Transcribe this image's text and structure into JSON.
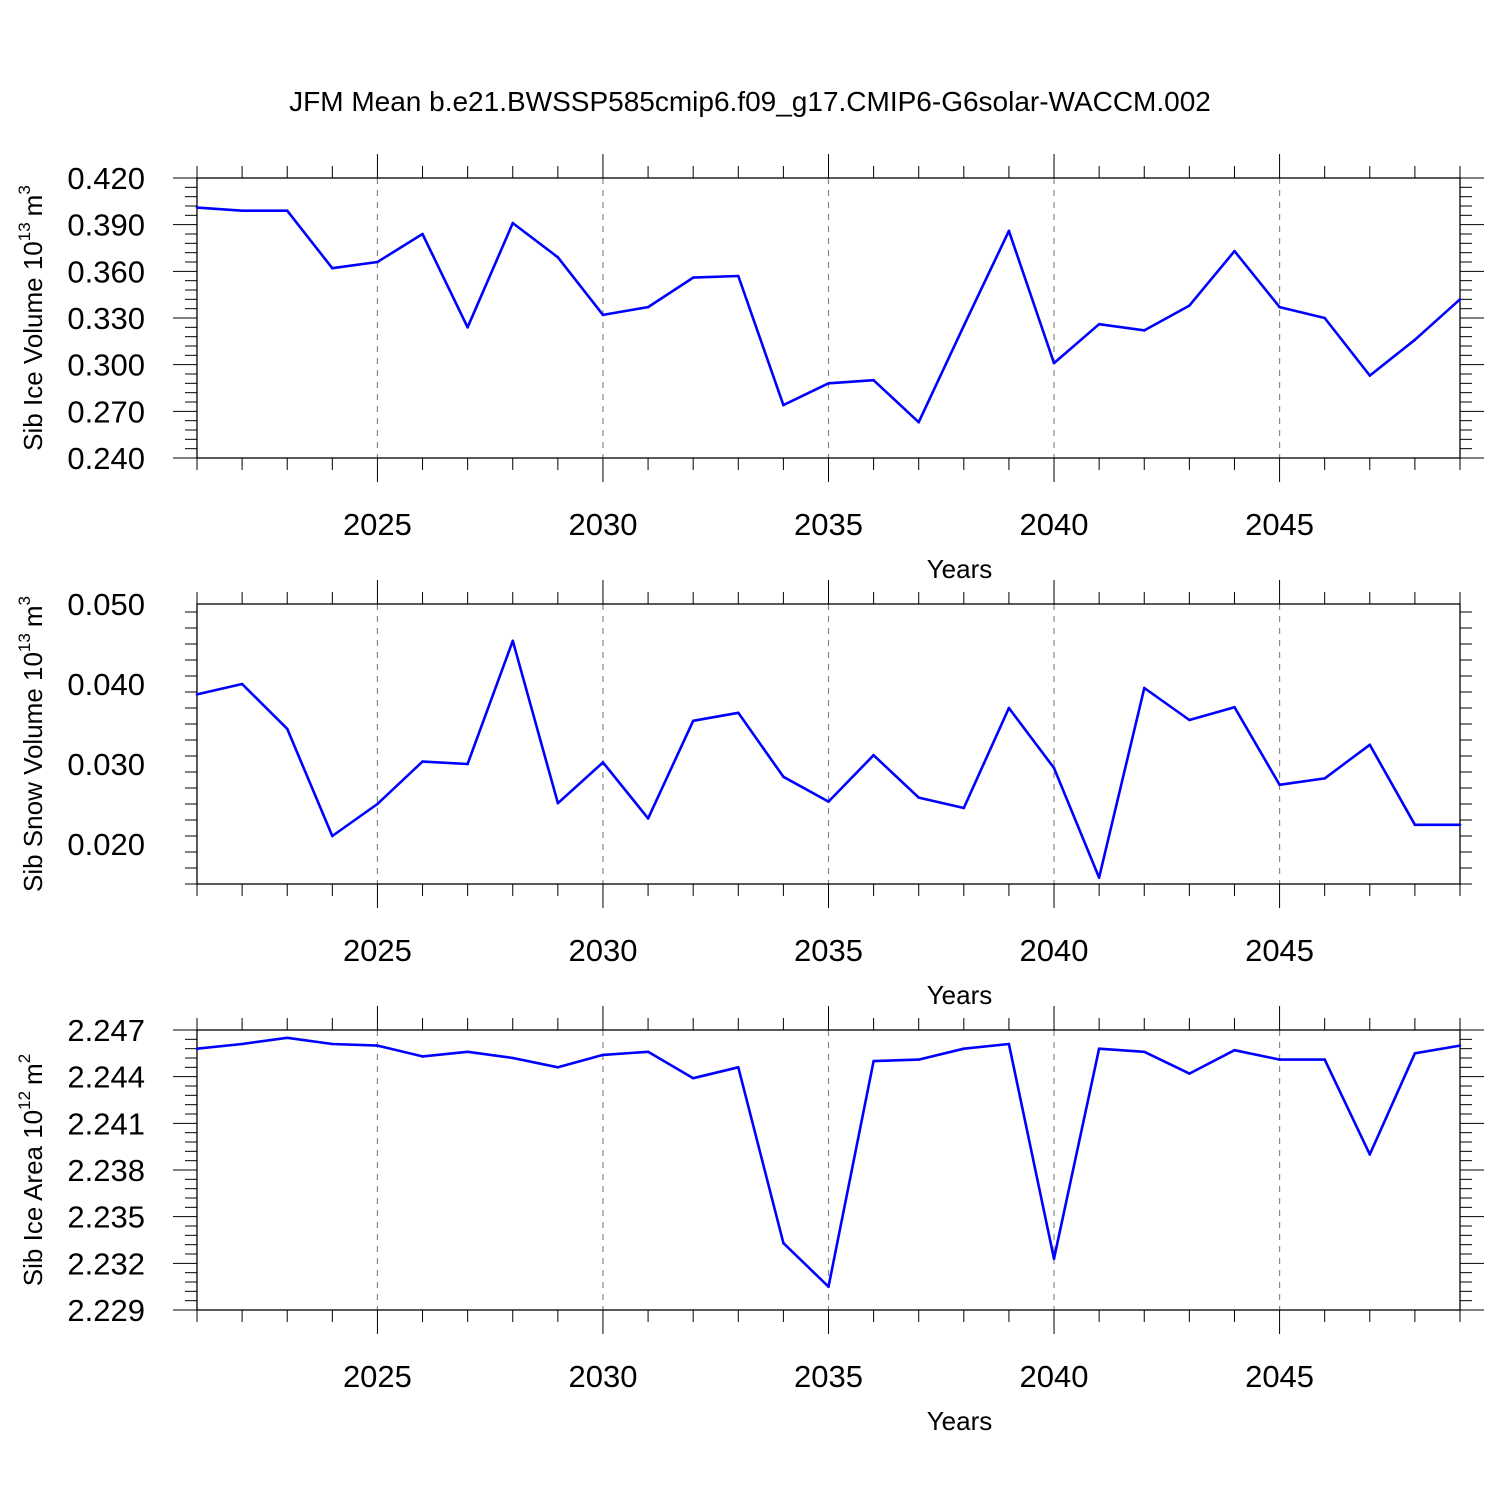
{
  "title": "JFM Mean b.e21.BWSSP585cmip6.f09_g17.CMIP6-G6solar-WACCM.002",
  "line_color": "#0000ff",
  "chart_data": [
    {
      "type": "line",
      "ylabel_main": "Sib Ice Volume 10",
      "ylabel_exp": "13",
      "ylabel_unit": "m",
      "ylabel_unit_exp": "3",
      "xlabel": "Years",
      "xlim": [
        2021,
        2049
      ],
      "ylim": [
        0.24,
        0.42
      ],
      "yticks": [
        0.24,
        0.27,
        0.3,
        0.33,
        0.36,
        0.39,
        0.42
      ],
      "ytick_labels": [
        "0.240",
        "0.270",
        "0.300",
        "0.330",
        "0.360",
        "0.390",
        "0.420"
      ],
      "xticks": [
        2025,
        2030,
        2035,
        2040,
        2045
      ],
      "xtick_labels": [
        "2025",
        "2030",
        "2035",
        "2040",
        "2045"
      ],
      "grid": "vertical dashed at major x ticks",
      "x": [
        2021,
        2022,
        2023,
        2024,
        2025,
        2026,
        2027,
        2028,
        2029,
        2030,
        2031,
        2032,
        2033,
        2034,
        2035,
        2036,
        2037,
        2038,
        2039,
        2040,
        2041,
        2042,
        2043,
        2044,
        2045,
        2046,
        2047,
        2048,
        2049
      ],
      "values": [
        0.401,
        0.399,
        0.399,
        0.362,
        0.366,
        0.384,
        0.324,
        0.391,
        0.369,
        0.332,
        0.337,
        0.356,
        0.357,
        0.274,
        0.288,
        0.29,
        0.263,
        0.325,
        0.386,
        0.301,
        0.326,
        0.322,
        0.338,
        0.373,
        0.337,
        0.33,
        0.293,
        0.316,
        0.342
      ]
    },
    {
      "type": "line",
      "ylabel_main": "Sib Snow Volume 10",
      "ylabel_exp": "13",
      "ylabel_unit": "m",
      "ylabel_unit_exp": "3",
      "xlabel": "Years",
      "xlim": [
        2021,
        2049
      ],
      "ylim": [
        0.015,
        0.05
      ],
      "yticks": [
        0.02,
        0.03,
        0.04,
        0.05
      ],
      "ytick_labels": [
        "0.020",
        "0.030",
        "0.040",
        "0.050"
      ],
      "xticks": [
        2025,
        2030,
        2035,
        2040,
        2045
      ],
      "xtick_labels": [
        "2025",
        "2030",
        "2035",
        "2040",
        "2045"
      ],
      "grid": "vertical dashed at major x ticks",
      "x": [
        2021,
        2022,
        2023,
        2024,
        2025,
        2026,
        2027,
        2028,
        2029,
        2030,
        2031,
        2032,
        2033,
        2034,
        2035,
        2036,
        2037,
        2038,
        2039,
        2040,
        2041,
        2042,
        2043,
        2044,
        2045,
        2046,
        2047,
        2048,
        2049
      ],
      "values": [
        0.0387,
        0.04,
        0.0344,
        0.021,
        0.025,
        0.0303,
        0.03,
        0.0454,
        0.0251,
        0.0302,
        0.0232,
        0.0354,
        0.0364,
        0.0284,
        0.0253,
        0.0311,
        0.0258,
        0.0245,
        0.037,
        0.0295,
        0.0158,
        0.0395,
        0.0355,
        0.0371,
        0.0274,
        0.0282,
        0.0324,
        0.0224,
        0.0224
      ]
    },
    {
      "type": "line",
      "ylabel_main": "Sib Ice Area 10",
      "ylabel_exp": "12",
      "ylabel_unit": "m",
      "ylabel_unit_exp": "2",
      "xlabel": "Years",
      "xlim": [
        2021,
        2049
      ],
      "ylim": [
        2.229,
        2.247
      ],
      "yticks": [
        2.229,
        2.232,
        2.235,
        2.238,
        2.241,
        2.244,
        2.247
      ],
      "ytick_labels": [
        "2.229",
        "2.232",
        "2.235",
        "2.238",
        "2.241",
        "2.244",
        "2.247"
      ],
      "xticks": [
        2025,
        2030,
        2035,
        2040,
        2045
      ],
      "xtick_labels": [
        "2025",
        "2030",
        "2035",
        "2040",
        "2045"
      ],
      "grid": "vertical dashed at major x ticks",
      "x": [
        2021,
        2022,
        2023,
        2024,
        2025,
        2026,
        2027,
        2028,
        2029,
        2030,
        2031,
        2032,
        2033,
        2034,
        2035,
        2036,
        2037,
        2038,
        2039,
        2040,
        2041,
        2042,
        2043,
        2044,
        2045,
        2046,
        2047,
        2048,
        2049
      ],
      "values": [
        2.2458,
        2.2461,
        2.2465,
        2.2461,
        2.246,
        2.2453,
        2.2456,
        2.2452,
        2.2446,
        2.2454,
        2.2456,
        2.2439,
        2.2446,
        2.2333,
        2.2305,
        2.245,
        2.2451,
        2.2458,
        2.2461,
        2.2323,
        2.2458,
        2.2456,
        2.2442,
        2.2457,
        2.2451,
        2.2451,
        2.239,
        2.2455,
        2.246
      ]
    }
  ]
}
